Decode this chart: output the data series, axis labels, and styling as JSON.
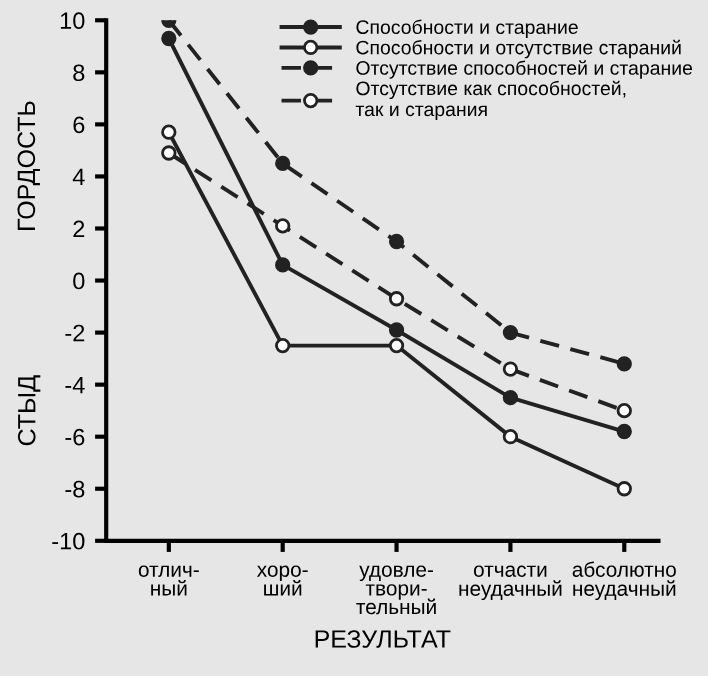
{
  "chart_data": {
    "type": "line",
    "xlabel": "РЕЗУЛЬТАТ",
    "ylabel": "ГОРДОСТЬ",
    "annotations": [
      "СТЫД"
    ],
    "categories": [
      "отлич-\nный",
      "хоро-\nший",
      "удовле-\nтвори-\nтельный",
      "отчасти\nнеудачный",
      "абсолютно\nнеудачный"
    ],
    "ylim": [
      -10,
      10
    ],
    "yticks": [
      -10,
      -8,
      -6,
      -4,
      -2,
      0,
      2,
      4,
      6,
      8,
      10
    ],
    "grid": false,
    "legend": "top right",
    "series": [
      {
        "name": "Способности и старание",
        "color": "#222222",
        "marker": "circle",
        "line_style": "solid",
        "values": [
          9.3,
          0.6,
          -1.9,
          -4.5,
          -5.8
        ]
      },
      {
        "name": "Способности и отсутствие стараний",
        "color": "#222222",
        "marker": "circle",
        "line_style": "solid",
        "values": [
          5.7,
          -2.5,
          -2.5,
          -6,
          -8
        ]
      },
      {
        "name": "Отсутствие способностей и старание",
        "color": "#222222",
        "marker": "circle",
        "line_style": "dashed",
        "values": [
          10,
          4.5,
          1.5,
          -2,
          -3.2
        ]
      },
      {
        "name": "Отсутствие как способностей,\nтак и старания",
        "color": "#222222",
        "marker": "circle",
        "line_style": "dashed",
        "values": [
          4.9,
          2.1,
          -0.7,
          -3.4,
          -5
        ]
      }
    ]
  }
}
